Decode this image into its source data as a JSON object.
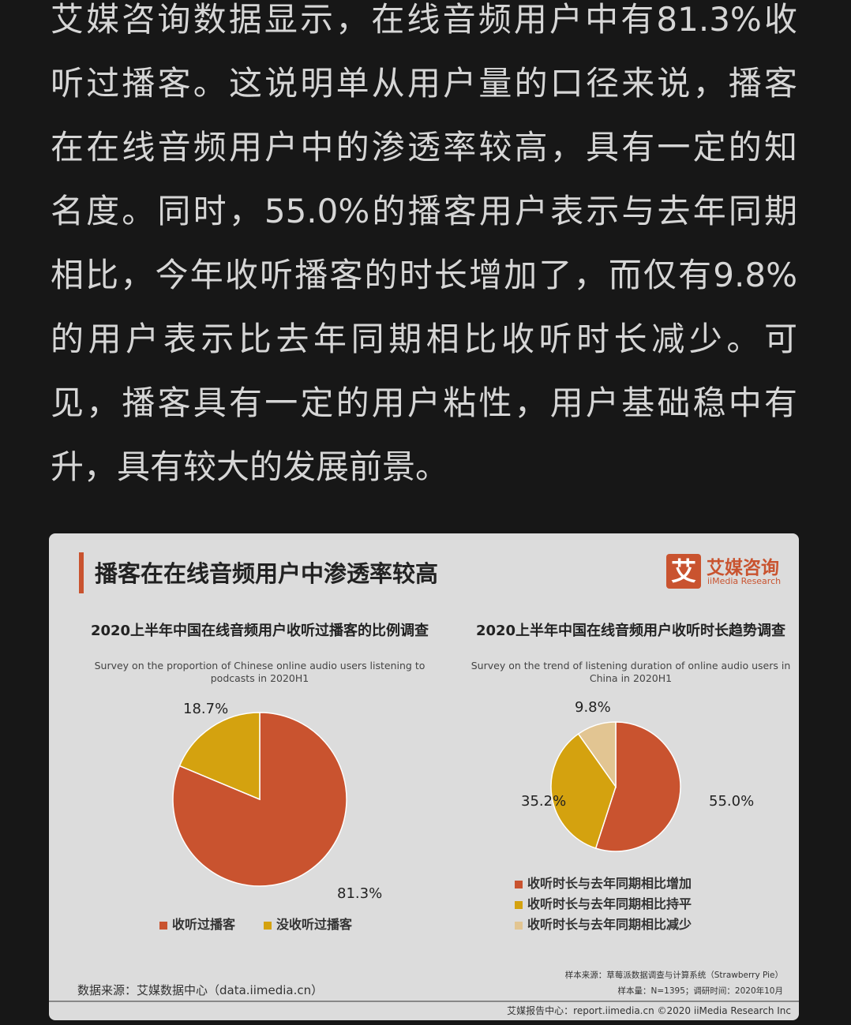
{
  "article": {
    "lines": [
      "艾媒咨询数据显示，在线音频用户中有81.3%收",
      "听过播客。这说明单从用户量的口径来说，播客",
      "在在线音频用户中的渗透率较高，具有一定的知",
      "名度。同时，55.0%的播客用户表示与去年同期",
      "相比，今年收听播客的时长增加了，而仅有9.8%",
      "的用户表示比去年同期相比收听时长减少。可",
      "见，播客具有一定的用户粘性，用户基础稳中有",
      "升，具有较大的发展前景。"
    ]
  },
  "card": {
    "title": "播客在在线音频用户中渗透率较高",
    "logo_mark": "艾",
    "logo_cn": "艾媒咨询",
    "logo_en": "iiMedia Research",
    "source": "数据来源：艾媒数据中心（data.iimedia.cn）",
    "sample_source": "样本来源：草莓派数据调查与计算系统（Strawberry Pie）",
    "sample_size": "样本量：N=1395；调研时间：2020年10月",
    "footer": "艾媒报告中心：report.iimedia.cn  ©2020  iiMedia Research Inc"
  },
  "colors": {
    "orange": "#c9532f",
    "yellow": "#d4a20f",
    "beige": "#e2c592"
  },
  "chart_data": [
    {
      "type": "pie",
      "title": "2020上半年中国在线音频用户收听过播客的比例调查",
      "subtitle": "Survey on the proportion of Chinese online audio users listening to podcasts in 2020H1",
      "categories": [
        "收听过播客",
        "没收听过播客"
      ],
      "values": [
        81.3,
        18.7
      ],
      "labels": [
        "81.3%",
        "18.7%"
      ],
      "legend": "bottom"
    },
    {
      "type": "pie",
      "title": "2020上半年中国在线音频用户收听时长趋势调查",
      "subtitle": "Survey on the trend of listening duration of online audio users in China in 2020H1",
      "categories": [
        "收听时长与去年同期相比增加",
        "收听时长与去年同期相比持平",
        "收听时长与去年同期相比减少"
      ],
      "values": [
        55.0,
        35.2,
        9.8
      ],
      "labels": [
        "55.0%",
        "35.2%",
        "9.8%"
      ],
      "legend": "bottom"
    }
  ]
}
